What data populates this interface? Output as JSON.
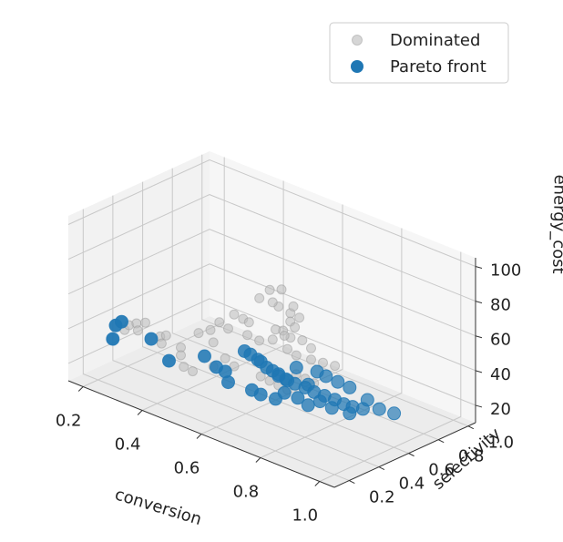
{
  "chart_data": {
    "type": "scatter",
    "projection": "3d",
    "title": "",
    "xlabel": "conversion",
    "ylabel": "selectivity",
    "zlabel": "energy_cost",
    "xlim": [
      0.15,
      1.05
    ],
    "ylim": [
      0.1,
      1.05
    ],
    "zlim": [
      10,
      105
    ],
    "xticks": [
      "0.2",
      "0.4",
      "0.6",
      "0.8",
      "1.0"
    ],
    "yticks": [
      "0.2",
      "0.4",
      "0.6",
      "0.8",
      "1.0"
    ],
    "zticks": [
      "20",
      "40",
      "60",
      "80",
      "100"
    ],
    "grid": true,
    "legend_position": "top-right",
    "series": [
      {
        "name": "Dominated",
        "color": "#bbbbbb",
        "marker": "circle",
        "points": [
          [
            0.27,
            0.24,
            42
          ],
          [
            0.28,
            0.25,
            45
          ],
          [
            0.3,
            0.26,
            47
          ],
          [
            0.31,
            0.25,
            44
          ],
          [
            0.32,
            0.28,
            48
          ],
          [
            0.36,
            0.3,
            42
          ],
          [
            0.37,
            0.29,
            39
          ],
          [
            0.38,
            0.3,
            44
          ],
          [
            0.4,
            0.36,
            36
          ],
          [
            0.41,
            0.34,
            33
          ],
          [
            0.45,
            0.38,
            47
          ],
          [
            0.48,
            0.4,
            50
          ],
          [
            0.5,
            0.42,
            55
          ],
          [
            0.52,
            0.44,
            52
          ],
          [
            0.5,
            0.38,
            45
          ],
          [
            0.53,
            0.46,
            60
          ],
          [
            0.55,
            0.48,
            58
          ],
          [
            0.56,
            0.5,
            56
          ],
          [
            0.58,
            0.53,
            70
          ],
          [
            0.6,
            0.56,
            75
          ],
          [
            0.62,
            0.58,
            66
          ],
          [
            0.64,
            0.62,
            62
          ],
          [
            0.66,
            0.64,
            60
          ],
          [
            0.6,
            0.65,
            48
          ],
          [
            0.62,
            0.66,
            45
          ],
          [
            0.65,
            0.5,
            58
          ],
          [
            0.67,
            0.52,
            55
          ],
          [
            0.68,
            0.54,
            63
          ],
          [
            0.63,
            0.52,
            50
          ],
          [
            0.69,
            0.55,
            60
          ],
          [
            0.7,
            0.58,
            52
          ],
          [
            0.72,
            0.6,
            48
          ],
          [
            0.66,
            0.56,
            45
          ],
          [
            0.68,
            0.58,
            42
          ],
          [
            0.71,
            0.62,
            40
          ],
          [
            0.73,
            0.66,
            38
          ],
          [
            0.75,
            0.7,
            36
          ],
          [
            0.7,
            0.54,
            34
          ],
          [
            0.72,
            0.56,
            32
          ],
          [
            0.74,
            0.58,
            30
          ],
          [
            0.58,
            0.45,
            52
          ],
          [
            0.61,
            0.47,
            50
          ],
          [
            0.55,
            0.36,
            40
          ],
          [
            0.57,
            0.38,
            36
          ],
          [
            0.52,
            0.34,
            34
          ],
          [
            0.63,
            0.44,
            32
          ],
          [
            0.65,
            0.46,
            30
          ],
          [
            0.67,
            0.48,
            28
          ],
          [
            0.69,
            0.5,
            26
          ],
          [
            0.64,
            0.58,
            25
          ],
          [
            0.62,
            0.54,
            70
          ],
          [
            0.64,
            0.56,
            78
          ],
          [
            0.66,
            0.6,
            68
          ],
          [
            0.44,
            0.3,
            30
          ],
          [
            0.46,
            0.32,
            28
          ]
        ]
      },
      {
        "name": "Pareto front",
        "color": "#1f77b4",
        "marker": "circle",
        "points": [
          [
            0.25,
            0.22,
            44
          ],
          [
            0.26,
            0.24,
            46
          ],
          [
            0.25,
            0.2,
            37
          ],
          [
            0.34,
            0.28,
            40
          ],
          [
            0.39,
            0.3,
            30
          ],
          [
            0.47,
            0.38,
            35
          ],
          [
            0.5,
            0.4,
            30
          ],
          [
            0.52,
            0.42,
            28
          ],
          [
            0.54,
            0.4,
            24
          ],
          [
            0.57,
            0.45,
            42
          ],
          [
            0.58,
            0.47,
            40
          ],
          [
            0.6,
            0.48,
            38
          ],
          [
            0.6,
            0.5,
            36
          ],
          [
            0.62,
            0.5,
            34
          ],
          [
            0.63,
            0.52,
            32
          ],
          [
            0.64,
            0.54,
            30
          ],
          [
            0.66,
            0.55,
            28
          ],
          [
            0.68,
            0.57,
            26
          ],
          [
            0.7,
            0.6,
            24
          ],
          [
            0.72,
            0.62,
            22
          ],
          [
            0.74,
            0.65,
            20
          ],
          [
            0.76,
            0.68,
            18
          ],
          [
            0.78,
            0.7,
            16
          ],
          [
            0.8,
            0.72,
            15
          ],
          [
            0.82,
            0.75,
            14
          ],
          [
            0.78,
            0.74,
            24
          ],
          [
            0.75,
            0.72,
            26
          ],
          [
            0.72,
            0.7,
            28
          ],
          [
            0.7,
            0.68,
            30
          ],
          [
            0.66,
            0.62,
            32
          ],
          [
            0.68,
            0.66,
            22
          ],
          [
            0.64,
            0.6,
            24
          ],
          [
            0.62,
            0.58,
            26
          ],
          [
            0.74,
            0.62,
            18
          ],
          [
            0.72,
            0.58,
            16
          ],
          [
            0.7,
            0.55,
            20
          ],
          [
            0.67,
            0.52,
            22
          ],
          [
            0.65,
            0.5,
            18
          ],
          [
            0.62,
            0.46,
            20
          ],
          [
            0.6,
            0.44,
            22
          ],
          [
            0.85,
            0.8,
            14
          ],
          [
            0.88,
            0.84,
            12
          ],
          [
            0.8,
            0.7,
            12
          ],
          [
            0.76,
            0.66,
            14
          ],
          [
            0.82,
            0.78,
            18
          ]
        ]
      }
    ]
  }
}
